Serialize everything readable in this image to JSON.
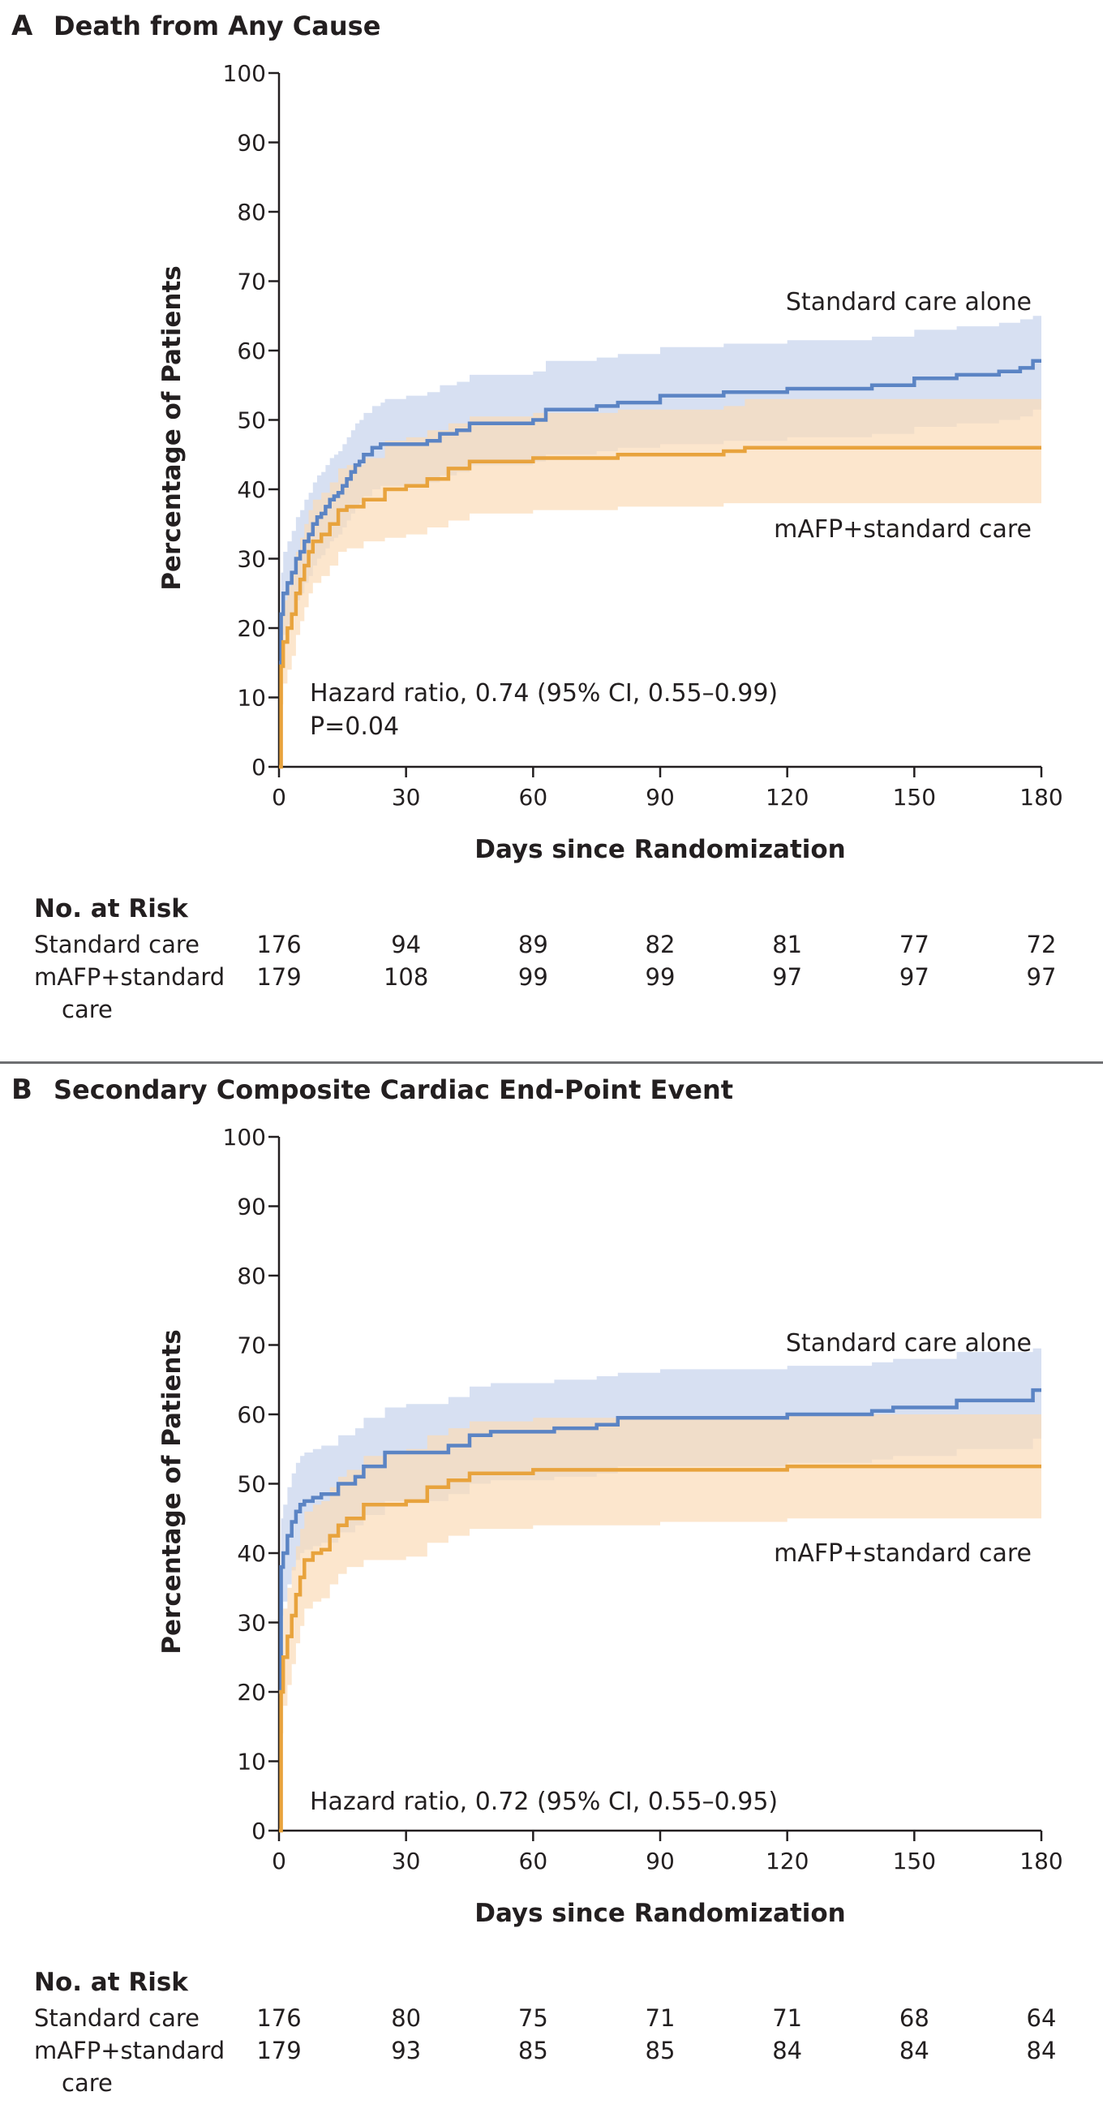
{
  "chart_data": [
    {
      "type": "line",
      "panel_letter": "A",
      "title": "Death from Any Cause",
      "xlabel": "Days since Randomization",
      "ylabel": "Percentage of Patients",
      "xlim": [
        0,
        180
      ],
      "ylim": [
        0,
        100
      ],
      "xticks": [
        0,
        30,
        60,
        90,
        120,
        150,
        180
      ],
      "yticks": [
        0,
        10,
        20,
        30,
        40,
        50,
        60,
        70,
        80,
        90,
        100
      ],
      "grid": false,
      "colors": {
        "standard": "#5b84c4",
        "mafp": "#e8a33d",
        "standard_band": "#c9d5ee",
        "mafp_band": "#fbdcb8"
      },
      "series": [
        {
          "name": "Standard care alone",
          "color": "#5b84c4",
          "x": [
            0,
            0.5,
            1,
            2,
            3,
            4,
            5,
            6,
            7,
            8,
            9,
            10,
            11,
            12,
            13,
            14,
            15,
            16,
            17,
            18,
            19,
            20,
            22,
            24,
            25,
            30,
            35,
            38,
            42,
            45,
            60,
            63,
            75,
            80,
            90,
            105,
            120,
            140,
            150,
            160,
            170,
            175,
            178,
            180
          ],
          "y": [
            15,
            22,
            25,
            26.5,
            28,
            30,
            31,
            32.5,
            33.5,
            35,
            36,
            36.5,
            37.5,
            38.5,
            39,
            39.5,
            40.5,
            41.5,
            42.5,
            43.5,
            44,
            45,
            46,
            46.5,
            46.5,
            46.5,
            47,
            48,
            48.5,
            49.5,
            50,
            51.5,
            52,
            52.5,
            53.5,
            54,
            54.5,
            55,
            56,
            56.5,
            57,
            57.5,
            58.5,
            58.5
          ],
          "ci_lower": [
            9,
            16,
            19,
            20.5,
            22,
            24,
            25,
            26.5,
            27.5,
            29,
            30,
            30.5,
            31.5,
            32.5,
            33,
            33.5,
            34.5,
            35.5,
            36.5,
            37.5,
            38,
            39,
            40,
            40.5,
            40.5,
            40.5,
            41,
            42,
            42.5,
            43.5,
            44,
            45,
            45.5,
            46,
            46.5,
            47,
            47.5,
            48,
            49,
            49.5,
            50,
            50.5,
            51.5,
            51.5
          ],
          "ci_upper": [
            21,
            28,
            31,
            32.5,
            34,
            36,
            37,
            38.5,
            39.5,
            41,
            42,
            42.5,
            43.5,
            44.5,
            45,
            45.5,
            46.5,
            47.5,
            48.5,
            49.5,
            50,
            51,
            52,
            52.5,
            53,
            53.5,
            54,
            55,
            55.5,
            56.5,
            57,
            58.5,
            59,
            59.5,
            60.5,
            61,
            61.5,
            62,
            63,
            63.5,
            64,
            64.5,
            65,
            65
          ]
        },
        {
          "name": "mAFP+standard care",
          "color": "#e8a33d",
          "x": [
            0,
            0.5,
            1,
            2,
            3,
            4,
            5,
            6,
            7,
            8,
            10,
            12,
            14,
            16,
            20,
            25,
            30,
            35,
            40,
            45,
            60,
            70,
            80,
            90,
            105,
            110,
            120,
            150,
            180
          ],
          "y": [
            0,
            14.5,
            18,
            20,
            22,
            25,
            27,
            29,
            31,
            32.5,
            33.5,
            35,
            37,
            37.5,
            38.5,
            40,
            40.5,
            41.5,
            43,
            44,
            44.5,
            44.5,
            45,
            45,
            45.5,
            46,
            46,
            46,
            46
          ],
          "ci_lower": [
            0,
            9,
            12,
            14,
            16,
            19,
            21,
            23,
            25,
            26.5,
            27.5,
            29,
            31,
            31.5,
            32.5,
            33,
            33.5,
            34.5,
            35.5,
            36.5,
            37,
            37,
            37.5,
            37.5,
            38,
            38,
            38,
            38,
            38
          ],
          "ci_upper": [
            0,
            20,
            24,
            26,
            28,
            31,
            33,
            35,
            37,
            38.5,
            39.5,
            41,
            43,
            43.5,
            44.5,
            47,
            47.5,
            48.5,
            49.5,
            50.5,
            51,
            51,
            51.5,
            51.5,
            52,
            53,
            53,
            53,
            53
          ]
        }
      ],
      "annotations": {
        "series_label_standard": "Standard care alone",
        "series_label_mafp": "mAFP+standard care",
        "hazard_ratio": "Hazard ratio, 0.74 (95% CI, 0.55–0.99)",
        "p_value": "P=0.04"
      },
      "risk_table": {
        "heading": "No. at Risk",
        "rows": [
          {
            "label_line1": "Standard care",
            "label_line2": "",
            "values": [
              "176",
              "94",
              "89",
              "82",
              "81",
              "77",
              "72"
            ]
          },
          {
            "label_line1": "mAFP+standard",
            "label_line2": "care",
            "values": [
              "179",
              "108",
              "99",
              "99",
              "97",
              "97",
              "97"
            ]
          }
        ]
      }
    },
    {
      "type": "line",
      "panel_letter": "B",
      "title": "Secondary Composite Cardiac End-Point Event",
      "xlabel": "Days since Randomization",
      "ylabel": "Percentage of Patients",
      "xlim": [
        0,
        180
      ],
      "ylim": [
        0,
        100
      ],
      "xticks": [
        0,
        30,
        60,
        90,
        120,
        150,
        180
      ],
      "yticks": [
        0,
        10,
        20,
        30,
        40,
        50,
        60,
        70,
        80,
        90,
        100
      ],
      "grid": false,
      "colors": {
        "standard": "#5b84c4",
        "mafp": "#e8a33d",
        "standard_band": "#c9d5ee",
        "mafp_band": "#fbdcb8"
      },
      "series": [
        {
          "name": "Standard care alone",
          "color": "#5b84c4",
          "x": [
            0,
            0.5,
            1,
            2,
            3,
            4,
            5,
            6,
            8,
            10,
            14,
            18,
            20,
            25,
            30,
            40,
            45,
            50,
            60,
            65,
            75,
            80,
            90,
            120,
            140,
            145,
            160,
            178,
            180
          ],
          "y": [
            20,
            38,
            40,
            42.5,
            44.5,
            46,
            47,
            47.5,
            48,
            48.5,
            50,
            51,
            52.5,
            54.5,
            54.5,
            55.5,
            57,
            57.5,
            57.5,
            58,
            58.5,
            59.5,
            59.5,
            60,
            60.5,
            61,
            62,
            63.5,
            63.5
          ],
          "ci_lower": [
            14,
            31,
            33,
            35.5,
            37.5,
            39,
            40,
            40.5,
            41,
            41.5,
            43,
            44,
            45.5,
            47.5,
            47.5,
            48.5,
            50,
            50.5,
            50.5,
            51,
            51.5,
            52.5,
            52.5,
            53,
            53.5,
            54,
            55,
            56.5,
            56.5
          ],
          "ci_upper": [
            26,
            45,
            47,
            49.5,
            51.5,
            53,
            54,
            54.5,
            55,
            55.5,
            57,
            58,
            59.5,
            61,
            61.5,
            62.5,
            64,
            64.5,
            64.5,
            65,
            65.5,
            66,
            66.5,
            67,
            67.5,
            68,
            69,
            69.5,
            69.5
          ]
        },
        {
          "name": "mAFP+standard care",
          "color": "#e8a33d",
          "x": [
            0,
            0.5,
            1,
            2,
            3,
            4,
            5,
            6,
            8,
            10,
            12,
            14,
            16,
            20,
            25,
            30,
            35,
            40,
            45,
            60,
            80,
            90,
            120,
            180
          ],
          "y": [
            0,
            20,
            25,
            28,
            31,
            34,
            36.5,
            39,
            40,
            40.5,
            42.5,
            44,
            45,
            47,
            47,
            47.5,
            49.5,
            50.5,
            51.5,
            52,
            52,
            52,
            52.5,
            52.5
          ],
          "ci_lower": [
            0,
            14,
            18,
            21,
            24,
            27,
            29.5,
            32,
            33,
            33.5,
            35.5,
            37,
            38,
            39,
            39,
            39.5,
            41.5,
            42.5,
            43.5,
            44,
            44,
            44.5,
            45,
            45
          ],
          "ci_upper": [
            0,
            26,
            32,
            35,
            38,
            41,
            43.5,
            46,
            47,
            47.5,
            49.5,
            51,
            52,
            54,
            54.5,
            55,
            57,
            58,
            59,
            59.5,
            59.5,
            59.5,
            60,
            60
          ]
        }
      ],
      "annotations": {
        "series_label_standard": "Standard care alone",
        "series_label_mafp": "mAFP+standard care",
        "hazard_ratio": "Hazard ratio, 0.72 (95% CI, 0.55–0.95)",
        "p_value": ""
      },
      "risk_table": {
        "heading": "No. at Risk",
        "rows": [
          {
            "label_line1": "Standard care",
            "label_line2": "",
            "values": [
              "176",
              "80",
              "75",
              "71",
              "71",
              "68",
              "64"
            ]
          },
          {
            "label_line1": "mAFP+standard",
            "label_line2": "care",
            "values": [
              "179",
              "93",
              "85",
              "85",
              "84",
              "84",
              "84"
            ]
          }
        ]
      }
    }
  ]
}
